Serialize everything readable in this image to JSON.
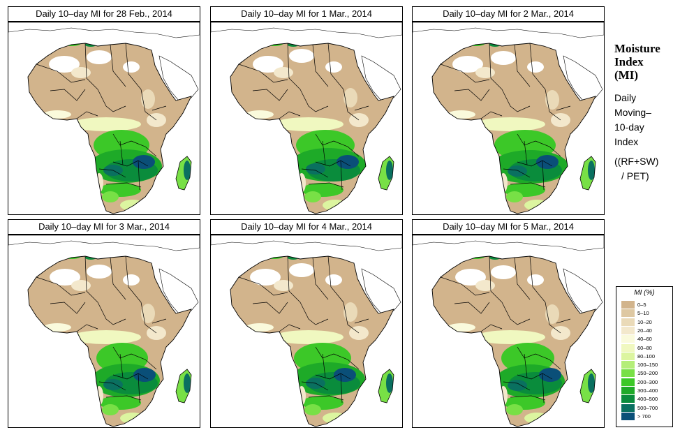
{
  "panels": [
    {
      "title": "Daily 10–day MI for  28 Feb., 2014"
    },
    {
      "title": "Daily 10–day MI for  1 Mar., 2014"
    },
    {
      "title": "Daily 10–day MI for  2 Mar., 2014"
    },
    {
      "title": "Daily 10–day MI for  3 Mar., 2014"
    },
    {
      "title": "Daily 10–day MI for  4 Mar., 2014"
    },
    {
      "title": "Daily 10–day MI for  5 Mar., 2014"
    }
  ],
  "sidebar": {
    "title_lines": [
      "Moisture",
      "Index",
      "(MI)"
    ],
    "desc_lines": [
      "Daily",
      "Moving–",
      "10-day",
      "Index"
    ],
    "formula_lines": [
      "((RF+SW)",
      "/ PET)"
    ]
  },
  "legend": {
    "title": "MI (%)",
    "items": [
      {
        "label": "0–5",
        "color": "#d2b48c"
      },
      {
        "label": "5–10",
        "color": "#dec8a2"
      },
      {
        "label": "10–20",
        "color": "#eadab8"
      },
      {
        "label": "20–40",
        "color": "#f3e8cc"
      },
      {
        "label": "40–60",
        "color": "#fafadc"
      },
      {
        "label": "60–80",
        "color": "#f0f8c0"
      },
      {
        "label": "80–100",
        "color": "#dcf5a0"
      },
      {
        "label": "100–150",
        "color": "#b4ee78"
      },
      {
        "label": "150–200",
        "color": "#78e046"
      },
      {
        "label": "200–300",
        "color": "#3cc828"
      },
      {
        "label": "300–400",
        "color": "#1eaa28"
      },
      {
        "label": "400–500",
        "color": "#0a8c3c"
      },
      {
        "label": "500–700",
        "color": "#0a7060"
      },
      {
        "label": "> 700",
        "color": "#0a4f78"
      }
    ]
  }
}
